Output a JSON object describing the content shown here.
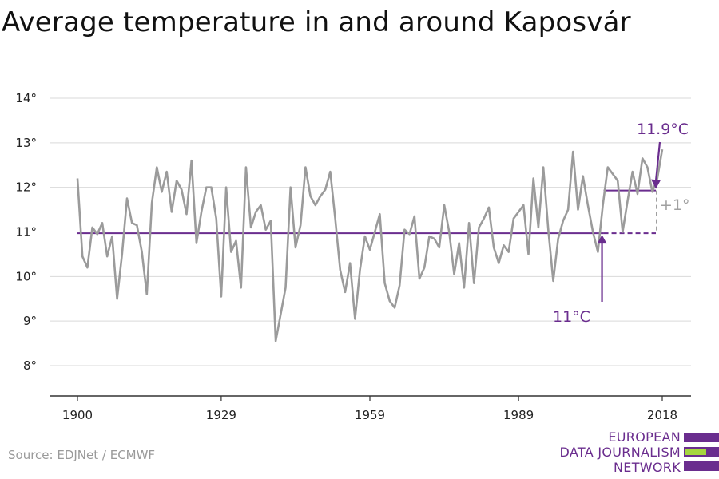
{
  "title": "Average temperature in and around Kaposvár",
  "source": "Source: EDJNet / ECMWF",
  "logo": {
    "lines": [
      "EUROPEAN",
      "DATA JOURNALISM",
      "NETWORK"
    ],
    "colors": {
      "purple": "#6a2d8e",
      "green": "#a5d63f"
    }
  },
  "colors": {
    "series": "#9b9b9b",
    "accent": "#6a2d8e",
    "grid": "#d9d9d9",
    "axis": "#333333",
    "delta": "#a0a0a0"
  },
  "chart_data": {
    "type": "line",
    "title": "Average temperature in and around Kaposvár",
    "xlabel": "",
    "ylabel": "",
    "xlim": [
      1900,
      2018
    ],
    "ylim": [
      8,
      14
    ],
    "grid": true,
    "x_ticks": [
      1900,
      1929,
      1959,
      1989,
      2018
    ],
    "x_tick_labels": [
      "1900",
      "1929",
      "1959",
      "1989",
      "2018"
    ],
    "y_ticks": [
      8,
      9,
      10,
      11,
      12,
      13,
      14
    ],
    "y_tick_labels": [
      "8°",
      "9°",
      "10°",
      "11°",
      "12°",
      "13°",
      "14°"
    ],
    "series": [
      {
        "x": [
          1900,
          1901,
          1902,
          1903,
          1904,
          1905,
          1906,
          1907,
          1908,
          1909,
          1910,
          1911,
          1912,
          1913,
          1914,
          1915,
          1916,
          1917,
          1918,
          1919,
          1920,
          1921,
          1922,
          1923,
          1924,
          1925,
          1926,
          1927,
          1928,
          1929,
          1930,
          1931,
          1932,
          1933,
          1934,
          1935,
          1936,
          1937,
          1938,
          1939,
          1940,
          1941,
          1942,
          1943,
          1944,
          1945,
          1946,
          1947,
          1948,
          1949,
          1950,
          1951,
          1952,
          1953,
          1954,
          1955,
          1956,
          1957,
          1958,
          1959,
          1960,
          1961,
          1962,
          1963,
          1964,
          1965,
          1966,
          1967,
          1968,
          1969,
          1970,
          1971,
          1972,
          1973,
          1974,
          1975,
          1976,
          1977,
          1978,
          1979,
          1980,
          1981,
          1982,
          1983,
          1984,
          1985,
          1986,
          1987,
          1988,
          1989,
          1990,
          1991,
          1992,
          1993,
          1994,
          1995,
          1996,
          1997,
          1998,
          1999,
          2000,
          2001,
          2002,
          2003,
          2004,
          2005,
          2006,
          2007,
          2008,
          2009,
          2010,
          2011,
          2012,
          2013,
          2014,
          2015,
          2016,
          2017,
          2018
        ],
        "values": [
          12.2,
          10.45,
          10.2,
          11.1,
          10.95,
          11.2,
          10.45,
          10.9,
          9.5,
          10.5,
          11.75,
          11.2,
          11.15,
          10.55,
          9.6,
          11.65,
          12.45,
          11.9,
          12.35,
          11.45,
          12.15,
          11.95,
          11.4,
          12.6,
          10.75,
          11.45,
          12.0,
          12.0,
          11.3,
          9.55,
          12.0,
          10.55,
          10.8,
          9.75,
          12.45,
          11.1,
          11.45,
          11.6,
          11.05,
          11.25,
          8.55,
          9.15,
          9.75,
          12.0,
          10.65,
          11.15,
          12.45,
          11.8,
          11.6,
          11.8,
          11.95,
          12.35,
          11.3,
          10.15,
          9.65,
          10.3,
          9.05,
          10.15,
          10.9,
          10.6,
          11.0,
          11.4,
          9.85,
          9.45,
          9.3,
          9.8,
          11.05,
          10.95,
          11.35,
          9.95,
          10.2,
          10.9,
          10.85,
          10.65,
          11.6,
          11.0,
          10.05,
          10.75,
          9.75,
          11.2,
          9.85,
          11.1,
          11.3,
          11.55,
          10.65,
          10.3,
          10.7,
          10.55,
          11.3,
          11.45,
          11.6,
          10.5,
          12.2,
          11.1,
          12.45,
          11.05,
          9.9,
          10.85,
          11.25,
          11.5,
          12.8,
          11.5,
          12.25,
          11.6,
          11.0,
          10.55,
          11.6,
          12.45,
          12.3,
          12.15,
          11.0,
          11.7,
          12.35,
          11.85,
          12.65,
          12.45,
          11.9,
          12.2,
          12.85
        ]
      }
    ],
    "reference_lines": [
      {
        "label": "11°C",
        "value": 10.97,
        "x_from": 1900,
        "x_to": 2018
      },
      {
        "label": "11.9°C",
        "value": 11.93,
        "x_from": 2006,
        "x_to": 2018
      }
    ],
    "annotations": [
      {
        "text": "11.9°C"
      },
      {
        "text": "11°C"
      },
      {
        "text": "+1°"
      }
    ]
  }
}
